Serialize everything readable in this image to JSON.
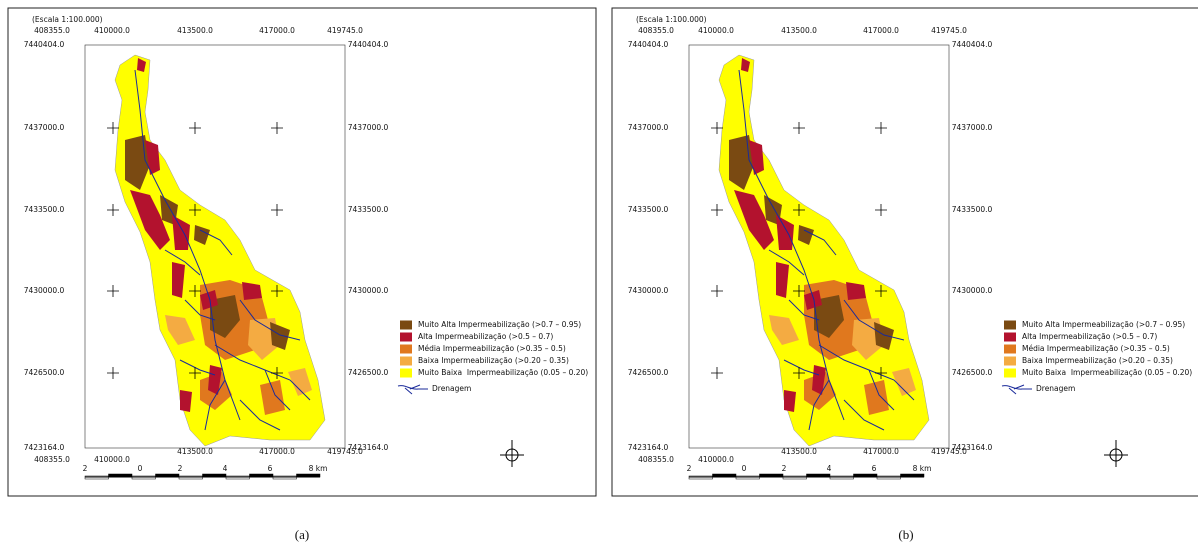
{
  "panels": [
    {
      "scale": "(Escala 1:100.000)",
      "x_labels": [
        "408355.0",
        "410000.0",
        "413500.0",
        "417000.0",
        "419745.0"
      ],
      "y_labels": [
        "7440404.0",
        "7437000.0",
        "7433500.0",
        "7430000.0",
        "7426500.0",
        "7423164.0"
      ],
      "scale_bar_labels": [
        "2",
        "0",
        "2",
        "4",
        "6",
        "8 km"
      ],
      "legend": [
        {
          "label": "Muito Alta Impermeabilização (>0.7 – 0.95)",
          "color": "#7a4a12"
        },
        {
          "label": "Alta Impermeabilização (>0.5 – 0.7)",
          "color": "#b3122e"
        },
        {
          "label": "Média Impermeabilização (>0.35 – 0.5)",
          "color": "#e0781e"
        },
        {
          "label": "Baixa Impermeabilização (>0.20 – 0.35)",
          "color": "#f4ab42"
        },
        {
          "label": "Muito Baixa  Impermeabilização (0.05 – 0.20)",
          "color": "#ffff00"
        }
      ],
      "drainage": "Drenagem",
      "caption": "(a)"
    },
    {
      "scale": "(Escala 1:100.000)",
      "x_labels": [
        "408355.0",
        "410000.0",
        "413500.0",
        "417000.0",
        "419745.0"
      ],
      "y_labels": [
        "7440404.0",
        "7437000.0",
        "7433500.0",
        "7430000.0",
        "7426500.0",
        "7423164.0"
      ],
      "scale_bar_labels": [
        "2",
        "0",
        "2",
        "4",
        "6",
        "8 km"
      ],
      "legend": [
        {
          "label": "Muito Alta Impermeabilização (>0.7 – 0.95)",
          "color": "#7a4a12"
        },
        {
          "label": "Alta Impermeabilização (>0.5 – 0.7)",
          "color": "#b3122e"
        },
        {
          "label": "Média Impermeabilização (>0.35 – 0.5)",
          "color": "#e0781e"
        },
        {
          "label": "Baixa Impermeabilização (>0.20 – 0.35)",
          "color": "#f4ab42"
        },
        {
          "label": "Muito Baixa  Impermeabilização (0.05 – 0.20)",
          "color": "#ffff00"
        }
      ],
      "drainage": "Drenagem",
      "caption": "(b)"
    }
  ]
}
